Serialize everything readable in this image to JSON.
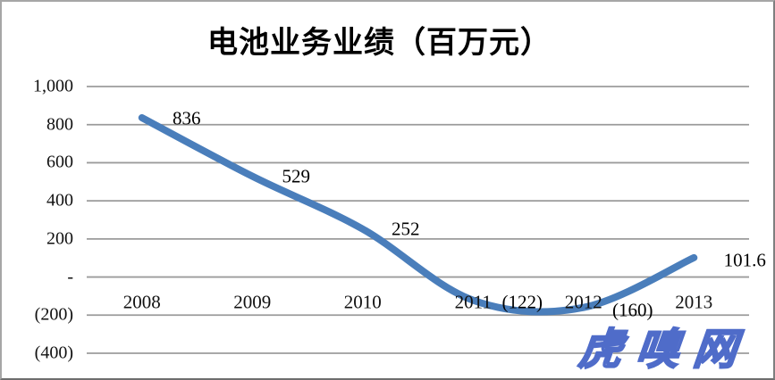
{
  "chart": {
    "title": "电池业务业绩（百万元）",
    "watermark": "虎嗅网",
    "colors": {
      "line": "#4a7ebb",
      "gridline": "#9b9b9b",
      "title_text": "#000000",
      "label_text": "#111111",
      "watermark_fill": "#94a9e5",
      "watermark_outline": "#4f6cc9",
      "frame_border": "#8c8c8c",
      "background": "#ffffff"
    }
  },
  "chart_data": {
    "type": "line",
    "title": "电池业务业绩（百万元）",
    "categories": [
      "2008",
      "2009",
      "2010",
      "2011",
      "2012",
      "2013"
    ],
    "series": [
      {
        "name": "电池业务业绩",
        "values": [
          836,
          529,
          252,
          -122,
          -160,
          101.6
        ],
        "color": "#4a7ebb"
      }
    ],
    "data_labels": [
      "836",
      "529",
      "252",
      "(122)",
      "(160)",
      "101.6"
    ],
    "y_tick_labels": [
      "1,000",
      "800",
      "600",
      "400",
      "200",
      "-",
      "(200)",
      "(400)"
    ],
    "y_tick_values": [
      1000,
      800,
      600,
      400,
      200,
      0,
      -200,
      -400
    ],
    "ylim": [
      -400,
      1000
    ],
    "xlabel": "",
    "ylabel": "",
    "grid": true,
    "smooth_line": true,
    "legend_position": "none",
    "negative_number_format": "parentheses"
  }
}
